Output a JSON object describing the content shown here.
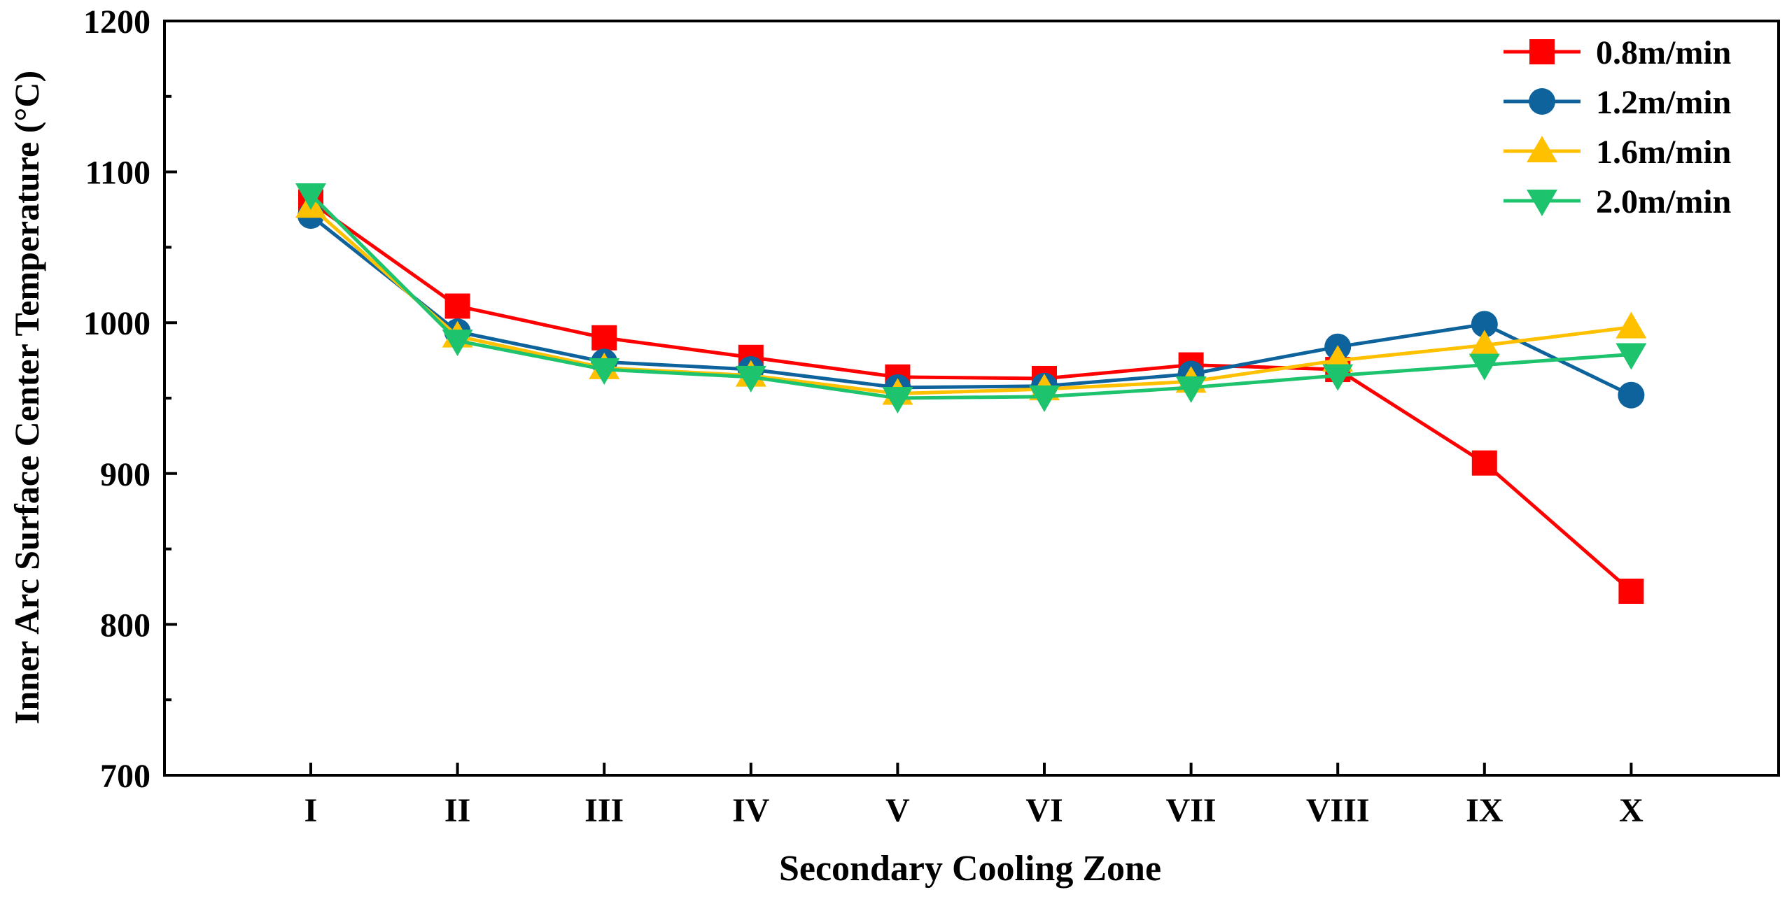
{
  "chart_data": {
    "type": "line",
    "title": "",
    "xlabel": "Secondary Cooling Zone",
    "ylabel": "Inner Arc Surface Center Temperature (°C)",
    "categories": [
      "I",
      "II",
      "III",
      "IV",
      "V",
      "VI",
      "VII",
      "VIII",
      "IX",
      "X"
    ],
    "ylim": [
      700,
      1200
    ],
    "yticks": [
      700,
      800,
      900,
      1000,
      1100,
      1200
    ],
    "ytick_labels": [
      "700",
      "800",
      "900",
      "1000",
      "1100",
      "1200"
    ],
    "grid": false,
    "legend_position": "top-right",
    "series": [
      {
        "name": "0.8m/min",
        "color": "#ff0000",
        "marker": "square",
        "values": [
          1080,
          1011,
          990,
          977,
          964,
          963,
          972,
          969,
          907,
          822
        ]
      },
      {
        "name": "1.2m/min",
        "color": "#0e639c",
        "marker": "circle",
        "values": [
          1071,
          994,
          974,
          969,
          957,
          958,
          966,
          984,
          999,
          952
        ]
      },
      {
        "name": "1.6m/min",
        "color": "#ffc000",
        "marker": "triangle-up",
        "values": [
          1077,
          991,
          970,
          965,
          953,
          956,
          961,
          975,
          985,
          997
        ]
      },
      {
        "name": "2.0m/min",
        "color": "#1ec36e",
        "marker": "triangle-down",
        "values": [
          1085,
          988,
          969,
          964,
          950,
          951,
          957,
          965,
          972,
          979
        ]
      }
    ]
  }
}
